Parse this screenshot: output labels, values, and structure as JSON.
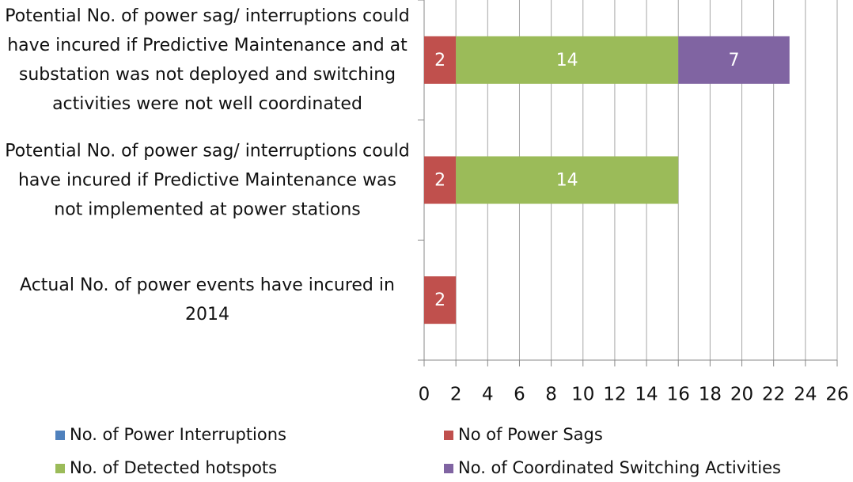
{
  "chart_data": {
    "type": "stacked_barh",
    "categories": [
      "Potential No. of power sag/ interruptions could have incured if Predictive Maintenance and at substation was not deployed and  switching activities were not well coordinated",
      "Potential No. of power sag/ interruptions could have incured if Predictive Maintenance was not implemented at power stations",
      "Actual No. of power events have incured in 2014"
    ],
    "series": [
      {
        "name": "No. of Power Interruptions",
        "color": "#4f81bd",
        "values": [
          0,
          0,
          0
        ]
      },
      {
        "name": "No of Power Sags",
        "color": "#c0504d",
        "values": [
          2,
          2,
          2
        ]
      },
      {
        "name": "No. of Detected hotspots",
        "color": "#9bbb59",
        "values": [
          14,
          14,
          null
        ]
      },
      {
        "name": "No. of Coordinated Switching Activities",
        "color": "#8064a2",
        "values": [
          7,
          null,
          null
        ]
      }
    ],
    "xlim": [
      0,
      26
    ],
    "xticks": [
      0,
      2,
      4,
      6,
      8,
      10,
      12,
      14,
      16,
      18,
      20,
      22,
      24,
      26
    ],
    "grid": true
  }
}
